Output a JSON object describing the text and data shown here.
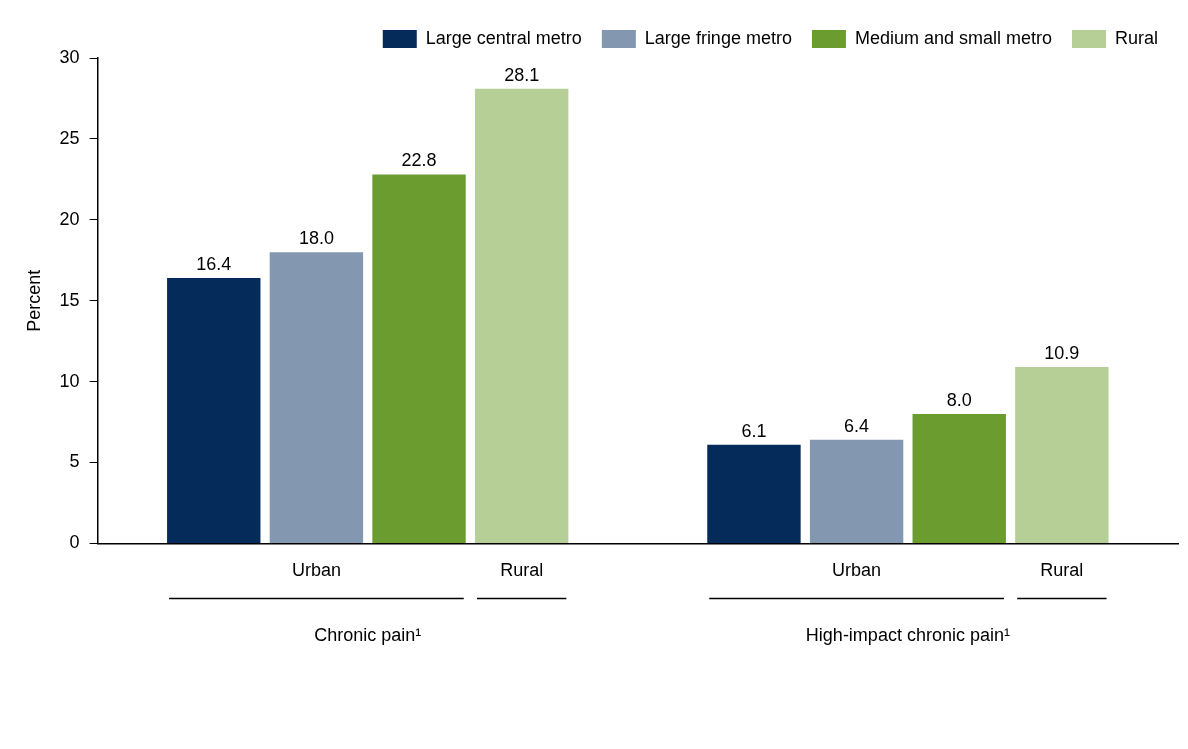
{
  "chart_data": {
    "type": "bar",
    "ylabel": "Percent",
    "categories": [
      "Chronic pain¹",
      "High-impact chronic pain¹"
    ],
    "series": [
      {
        "name": "Large central metro",
        "color": "#052b5b",
        "values": [
          16.4,
          6.1
        ],
        "value_labels": [
          "16.4",
          "6.1"
        ]
      },
      {
        "name": "Large fringe metro",
        "color": "#8397b1",
        "values": [
          18.0,
          6.4
        ],
        "value_labels": [
          "18.0",
          "6.4"
        ]
      },
      {
        "name": "Medium and small metro",
        "color": "#6b9c30",
        "values": [
          22.8,
          8.0
        ],
        "value_labels": [
          "22.8",
          "8.0"
        ]
      },
      {
        "name": "Rural",
        "color": "#b6cf96",
        "values": [
          28.1,
          10.9
        ],
        "value_labels": [
          "28.1",
          "10.9"
        ]
      }
    ],
    "ylim": [
      0,
      30
    ],
    "yticks": [
      0,
      5,
      10,
      15,
      20,
      25,
      30
    ],
    "grid": false,
    "legend": "top right",
    "annotations": [
      "Urban",
      "Rural",
      "Urban",
      "Rural"
    ]
  }
}
